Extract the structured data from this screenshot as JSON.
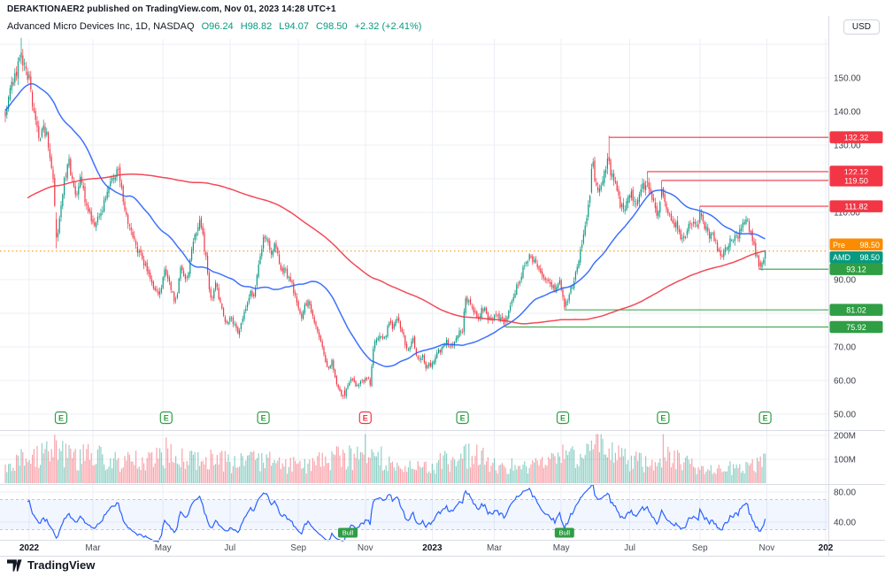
{
  "header": {
    "publisher_line": "DERAKTIONAER2 published on TradingView.com, Nov 01, 2023 14:28 UTC+1"
  },
  "legend": {
    "symbol": "Advanced Micro Devices Inc, 1D, NASDAQ",
    "o": "O96.24",
    "h": "H98.82",
    "l": "L94.07",
    "c": "C98.50",
    "change": "+2.32 (+2.41%)"
  },
  "currency_button": "USD",
  "footer": {
    "brand": "TradingView"
  },
  "colors": {
    "up": "#089981",
    "down": "#f23645",
    "ma_fast": "#2962ff",
    "ma_slow": "#f23645",
    "level_red": "#f23645",
    "level_green": "#2f9e44",
    "premarket": "#fb8c00",
    "rsi": "#2962ff",
    "grid": "#eceff5",
    "axis_text": "#3c404a",
    "separator": "#d9dce3"
  },
  "price_scale": {
    "ticks": [
      {
        "value": 150,
        "label": "150.00"
      },
      {
        "value": 140,
        "label": "140.00"
      },
      {
        "value": 130,
        "label": "130.00"
      },
      {
        "value": 110,
        "label": "110.00"
      },
      {
        "value": 90,
        "label": "90.00"
      },
      {
        "value": 70,
        "label": "70.00"
      },
      {
        "value": 60,
        "label": "60.00"
      },
      {
        "value": 50,
        "label": "50.00"
      }
    ]
  },
  "axis_tags": [
    {
      "text": "132.32",
      "price": 132.32,
      "bg": "#f23645"
    },
    {
      "text": "122.12",
      "price": 122.12,
      "bg": "#f23645"
    },
    {
      "text": "119.50",
      "price": 119.5,
      "bg": "#f23645"
    },
    {
      "text": "111.82",
      "price": 111.82,
      "bg": "#f23645"
    },
    {
      "prefix": "Pre",
      "text": "98.50",
      "price": 98.5,
      "bg": "#fb8c00",
      "dy": -7.4
    },
    {
      "prefix": "AMD",
      "text": "98.50",
      "price": 98.5,
      "bg": "#089981",
      "dy": 7.0
    },
    {
      "text": "93.12",
      "price": 93.12,
      "bg": "#2f9e44"
    },
    {
      "text": "81.02",
      "price": 81.02,
      "bg": "#2f9e44"
    },
    {
      "text": "75.92",
      "price": 75.92,
      "bg": "#2f9e44"
    }
  ],
  "levels": [
    {
      "price": 132.32,
      "day": 364,
      "color": "#f23645"
    },
    {
      "price": 122.12,
      "day": 388,
      "color": "#f23645"
    },
    {
      "price": 119.5,
      "day": 397,
      "color": "#f23645"
    },
    {
      "price": 111.82,
      "day": 421,
      "color": "#f23645"
    },
    {
      "price": 93.12,
      "day": 458,
      "color": "#2f9e44"
    },
    {
      "price": 81.02,
      "day": 336,
      "color": "#2f9e44"
    },
    {
      "price": 75.92,
      "day": 299,
      "color": "#2f9e44"
    }
  ],
  "premarket_line": {
    "price": 98.5,
    "color": "#fb8c00",
    "style": "dotted",
    "label": "Pre"
  },
  "earnings_markers": {
    "label": "E",
    "days": [
      20,
      86,
      147,
      211,
      272,
      335,
      398,
      462
    ],
    "red_days": [
      211
    ]
  },
  "rsi_tags": [
    {
      "label": "Bull",
      "day": 200
    },
    {
      "label": "Bull",
      "day": 336
    }
  ],
  "volume_axis": [
    {
      "value": 200,
      "label": "200M"
    },
    {
      "value": 100,
      "label": "100M"
    }
  ],
  "rsi_axis": [
    {
      "value": 80,
      "label": "80.00"
    },
    {
      "value": 40,
      "label": "40.00"
    }
  ],
  "time_axis": [
    {
      "label": "2022",
      "day": 0,
      "year": true
    },
    {
      "label": "Mar",
      "day": 40
    },
    {
      "label": "May",
      "day": 84
    },
    {
      "label": "Jul",
      "day": 126
    },
    {
      "label": "Sep",
      "day": 169
    },
    {
      "label": "Nov",
      "day": 211
    },
    {
      "label": "2023",
      "day": 253,
      "year": true
    },
    {
      "label": "Mar",
      "day": 292
    },
    {
      "label": "May",
      "day": 334
    },
    {
      "label": "Jul",
      "day": 377
    },
    {
      "label": "Sep",
      "day": 421
    },
    {
      "label": "Nov",
      "day": 463
    },
    {
      "label": "202",
      "day": 500,
      "year": true
    }
  ],
  "chart_data": {
    "type": "candlestick",
    "symbol": "AMD",
    "exchange": "NASDAQ",
    "interval": "1D",
    "panes": [
      "price+ma",
      "volume",
      "rsi14"
    ],
    "y_axis": {
      "min": 47,
      "max": 163,
      "grid_step": 10
    },
    "first_day": -15,
    "last_day": 462,
    "ma": [
      {
        "period": 45,
        "color": "#2962ff"
      },
      {
        "period": 200,
        "color": "#f23645"
      }
    ],
    "rsi_period": 14,
    "rsi_band": [
      30,
      70
    ],
    "pre_anchors": [
      [
        -200,
        88
      ],
      [
        -180,
        95
      ],
      [
        -160,
        100
      ],
      [
        -140,
        104
      ],
      [
        -120,
        102
      ],
      [
        -100,
        108
      ],
      [
        -80,
        106
      ],
      [
        -60,
        115
      ],
      [
        -50,
        130
      ],
      [
        -40,
        148
      ],
      [
        -30,
        152
      ],
      [
        -22,
        145
      ],
      [
        -16,
        140
      ]
    ],
    "price_anchors": [
      [
        -15,
        138
      ],
      [
        -12,
        146
      ],
      [
        -9,
        150
      ],
      [
        -7,
        154
      ],
      [
        -5,
        157
      ],
      [
        -3,
        153
      ],
      [
        -1,
        150.5
      ],
      [
        0,
        150
      ],
      [
        1,
        146
      ],
      [
        3,
        139
      ],
      [
        5,
        134
      ],
      [
        7,
        132
      ],
      [
        9,
        135
      ],
      [
        11,
        133
      ],
      [
        13,
        126
      ],
      [
        15,
        119
      ],
      [
        17,
        103
      ],
      [
        18,
        105
      ],
      [
        19,
        108
      ],
      [
        21,
        116
      ],
      [
        23,
        122
      ],
      [
        25,
        126
      ],
      [
        27,
        119
      ],
      [
        29,
        114
      ],
      [
        32,
        120
      ],
      [
        35,
        114
      ],
      [
        38,
        109
      ],
      [
        41,
        105
      ],
      [
        44,
        109
      ],
      [
        47,
        113
      ],
      [
        50,
        118
      ],
      [
        53,
        121
      ],
      [
        56,
        122
      ],
      [
        58,
        117
      ],
      [
        60,
        111
      ],
      [
        63,
        105
      ],
      [
        66,
        101
      ],
      [
        69,
        98
      ],
      [
        72,
        95
      ],
      [
        75,
        92
      ],
      [
        78,
        88
      ],
      [
        82,
        86
      ],
      [
        85,
        92
      ],
      [
        88,
        89
      ],
      [
        91,
        84
      ],
      [
        93,
        86
      ],
      [
        95,
        94
      ],
      [
        97,
        91
      ],
      [
        99,
        90
      ],
      [
        101,
        96
      ],
      [
        103,
        102
      ],
      [
        105,
        104
      ],
      [
        107,
        107
      ],
      [
        109,
        103
      ],
      [
        111,
        96
      ],
      [
        113,
        87
      ],
      [
        115,
        84
      ],
      [
        117,
        90
      ],
      [
        119,
        85
      ],
      [
        121,
        81
      ],
      [
        124,
        77
      ],
      [
        126,
        79
      ],
      [
        129,
        76
      ],
      [
        131,
        74
      ],
      [
        134,
        79
      ],
      [
        137,
        83
      ],
      [
        139,
        87
      ],
      [
        141,
        85
      ],
      [
        144,
        94
      ],
      [
        146,
        100
      ],
      [
        148,
        103
      ],
      [
        150,
        101
      ],
      [
        152,
        98
      ],
      [
        154,
        100
      ],
      [
        156,
        97
      ],
      [
        158,
        94
      ],
      [
        161,
        92
      ],
      [
        164,
        90
      ],
      [
        167,
        85
      ],
      [
        169,
        82
      ],
      [
        171,
        79
      ],
      [
        173,
        82
      ],
      [
        175,
        84
      ],
      [
        177,
        81
      ],
      [
        179,
        78
      ],
      [
        181,
        75
      ],
      [
        184,
        70
      ],
      [
        186,
        66
      ],
      [
        188,
        63.5
      ],
      [
        190,
        66
      ],
      [
        192,
        61
      ],
      [
        194,
        58
      ],
      [
        196,
        56
      ],
      [
        198,
        55.6
      ],
      [
        200,
        59
      ],
      [
        202,
        60.5
      ],
      [
        204,
        59
      ],
      [
        206,
        58
      ],
      [
        208,
        59.5
      ],
      [
        210,
        60
      ],
      [
        212,
        61
      ],
      [
        214,
        59
      ],
      [
        216,
        70
      ],
      [
        218,
        72
      ],
      [
        220,
        74
      ],
      [
        222,
        72
      ],
      [
        224,
        74
      ],
      [
        226,
        77
      ],
      [
        228,
        76
      ],
      [
        231,
        78
      ],
      [
        233,
        76
      ],
      [
        235,
        73
      ],
      [
        237,
        69
      ],
      [
        239,
        70
      ],
      [
        241,
        72
      ],
      [
        243,
        68
      ],
      [
        245,
        66
      ],
      [
        247,
        67
      ],
      [
        249,
        64
      ],
      [
        252,
        64.8
      ],
      [
        254,
        65
      ],
      [
        256,
        68
      ],
      [
        258,
        69
      ],
      [
        260,
        71
      ],
      [
        262,
        72
      ],
      [
        264,
        70
      ],
      [
        266,
        70
      ],
      [
        268,
        73
      ],
      [
        270,
        75
      ],
      [
        272,
        75.2
      ],
      [
        273,
        81
      ],
      [
        274,
        85
      ],
      [
        276,
        83
      ],
      [
        278,
        81
      ],
      [
        280,
        80
      ],
      [
        282,
        79
      ],
      [
        284,
        81
      ],
      [
        286,
        82
      ],
      [
        288,
        78
      ],
      [
        291,
        78.6
      ],
      [
        293,
        80
      ],
      [
        296,
        78
      ],
      [
        299,
        77
      ],
      [
        301,
        80
      ],
      [
        304,
        85
      ],
      [
        307,
        89
      ],
      [
        310,
        93
      ],
      [
        312,
        95
      ],
      [
        314,
        98
      ],
      [
        316,
        96
      ],
      [
        318,
        94
      ],
      [
        320,
        92
      ],
      [
        322,
        91
      ],
      [
        324,
        90
      ],
      [
        326,
        89
      ],
      [
        328,
        88
      ],
      [
        330,
        87
      ],
      [
        333,
        89.4
      ],
      [
        334,
        87
      ],
      [
        336,
        81.6
      ],
      [
        338,
        84
      ],
      [
        340,
        87
      ],
      [
        342,
        90
      ],
      [
        344,
        94
      ],
      [
        346,
        98
      ],
      [
        348,
        103
      ],
      [
        350,
        108
      ],
      [
        352,
        116
      ],
      [
        353,
        123
      ],
      [
        354,
        125
      ],
      [
        355,
        118.2
      ],
      [
        357,
        117
      ],
      [
        359,
        118
      ],
      [
        361,
        122
      ],
      [
        363,
        126
      ],
      [
        364,
        125
      ],
      [
        365,
        122
      ],
      [
        367,
        120
      ],
      [
        369,
        116
      ],
      [
        371,
        112
      ],
      [
        373,
        111
      ],
      [
        375,
        113
      ],
      [
        376,
        113.9
      ],
      [
        378,
        115
      ],
      [
        380,
        113
      ],
      [
        382,
        114
      ],
      [
        384,
        117
      ],
      [
        386,
        118
      ],
      [
        388,
        119.5
      ],
      [
        390,
        116
      ],
      [
        392,
        113
      ],
      [
        394,
        110
      ],
      [
        397,
        114.4
      ],
      [
        398,
        114
      ],
      [
        400,
        111
      ],
      [
        403,
        108
      ],
      [
        406,
        106
      ],
      [
        409,
        103
      ],
      [
        411,
        101.5
      ],
      [
        413,
        104
      ],
      [
        415,
        107
      ],
      [
        417,
        106
      ],
      [
        420,
        105.7
      ],
      [
        421,
        110
      ],
      [
        423,
        107
      ],
      [
        425,
        105
      ],
      [
        427,
        103
      ],
      [
        429,
        104
      ],
      [
        431,
        101
      ],
      [
        433,
        98
      ],
      [
        435,
        97
      ],
      [
        437,
        99
      ],
      [
        441,
        102.8
      ],
      [
        443,
        102
      ],
      [
        445,
        103
      ],
      [
        447,
        105
      ],
      [
        449,
        107
      ],
      [
        450,
        109
      ],
      [
        452,
        105
      ],
      [
        454,
        102
      ],
      [
        456,
        98
      ],
      [
        458,
        95
      ],
      [
        459,
        94
      ],
      [
        460,
        95.5
      ],
      [
        461,
        96.2
      ],
      [
        462,
        98.5
      ]
    ],
    "overrides": {
      "-5": [
        156,
        161.9,
        154,
        157.5
      ],
      "17": [
        108,
        110,
        99.3,
        102.5
      ],
      "198": [
        57,
        58.2,
        54.6,
        55.6
      ],
      "299": [
        78.5,
        79.5,
        75.92,
        77.5
      ],
      "336": [
        84.5,
        85.5,
        81.02,
        81.8
      ],
      "353": [
        116,
        124.5,
        115.5,
        123
      ],
      "364": [
        126.5,
        132.8,
        124.2,
        125.3
      ],
      "388": [
        119,
        122.12,
        117.5,
        119.2
      ],
      "397": [
        114.5,
        119.5,
        113.8,
        117
      ],
      "421": [
        107,
        111.82,
        106.5,
        110.2
      ],
      "459": [
        95.2,
        95.8,
        93.12,
        93.9
      ],
      "462": [
        96.24,
        98.82,
        94.07,
        98.5
      ]
    },
    "volume_anchors": [
      [
        -15,
        90
      ],
      [
        0,
        95
      ],
      [
        8,
        120
      ],
      [
        14,
        150
      ],
      [
        17,
        160
      ],
      [
        20,
        130
      ],
      [
        26,
        100
      ],
      [
        41,
        110
      ],
      [
        60,
        85
      ],
      [
        84,
        105
      ],
      [
        91,
        115
      ],
      [
        105,
        95
      ],
      [
        113,
        105
      ],
      [
        124,
        85
      ],
      [
        126,
        75
      ],
      [
        147,
        95
      ],
      [
        160,
        70
      ],
      [
        169,
        75
      ],
      [
        188,
        95
      ],
      [
        194,
        120
      ],
      [
        198,
        105
      ],
      [
        211,
        100
      ],
      [
        216,
        115
      ],
      [
        232,
        70
      ],
      [
        252,
        58
      ],
      [
        253,
        72
      ],
      [
        272,
        110
      ],
      [
        274,
        125
      ],
      [
        292,
        78
      ],
      [
        314,
        66
      ],
      [
        334,
        92
      ],
      [
        336,
        135
      ],
      [
        345,
        95
      ],
      [
        352,
        135
      ],
      [
        355,
        150
      ],
      [
        364,
        140
      ],
      [
        376,
        95
      ],
      [
        388,
        78
      ],
      [
        397,
        75
      ],
      [
        398,
        115
      ],
      [
        411,
        78
      ],
      [
        420,
        62
      ],
      [
        430,
        57
      ],
      [
        441,
        62
      ],
      [
        450,
        60
      ],
      [
        458,
        72
      ],
      [
        462,
        88
      ]
    ],
    "volume_unit": "M"
  }
}
